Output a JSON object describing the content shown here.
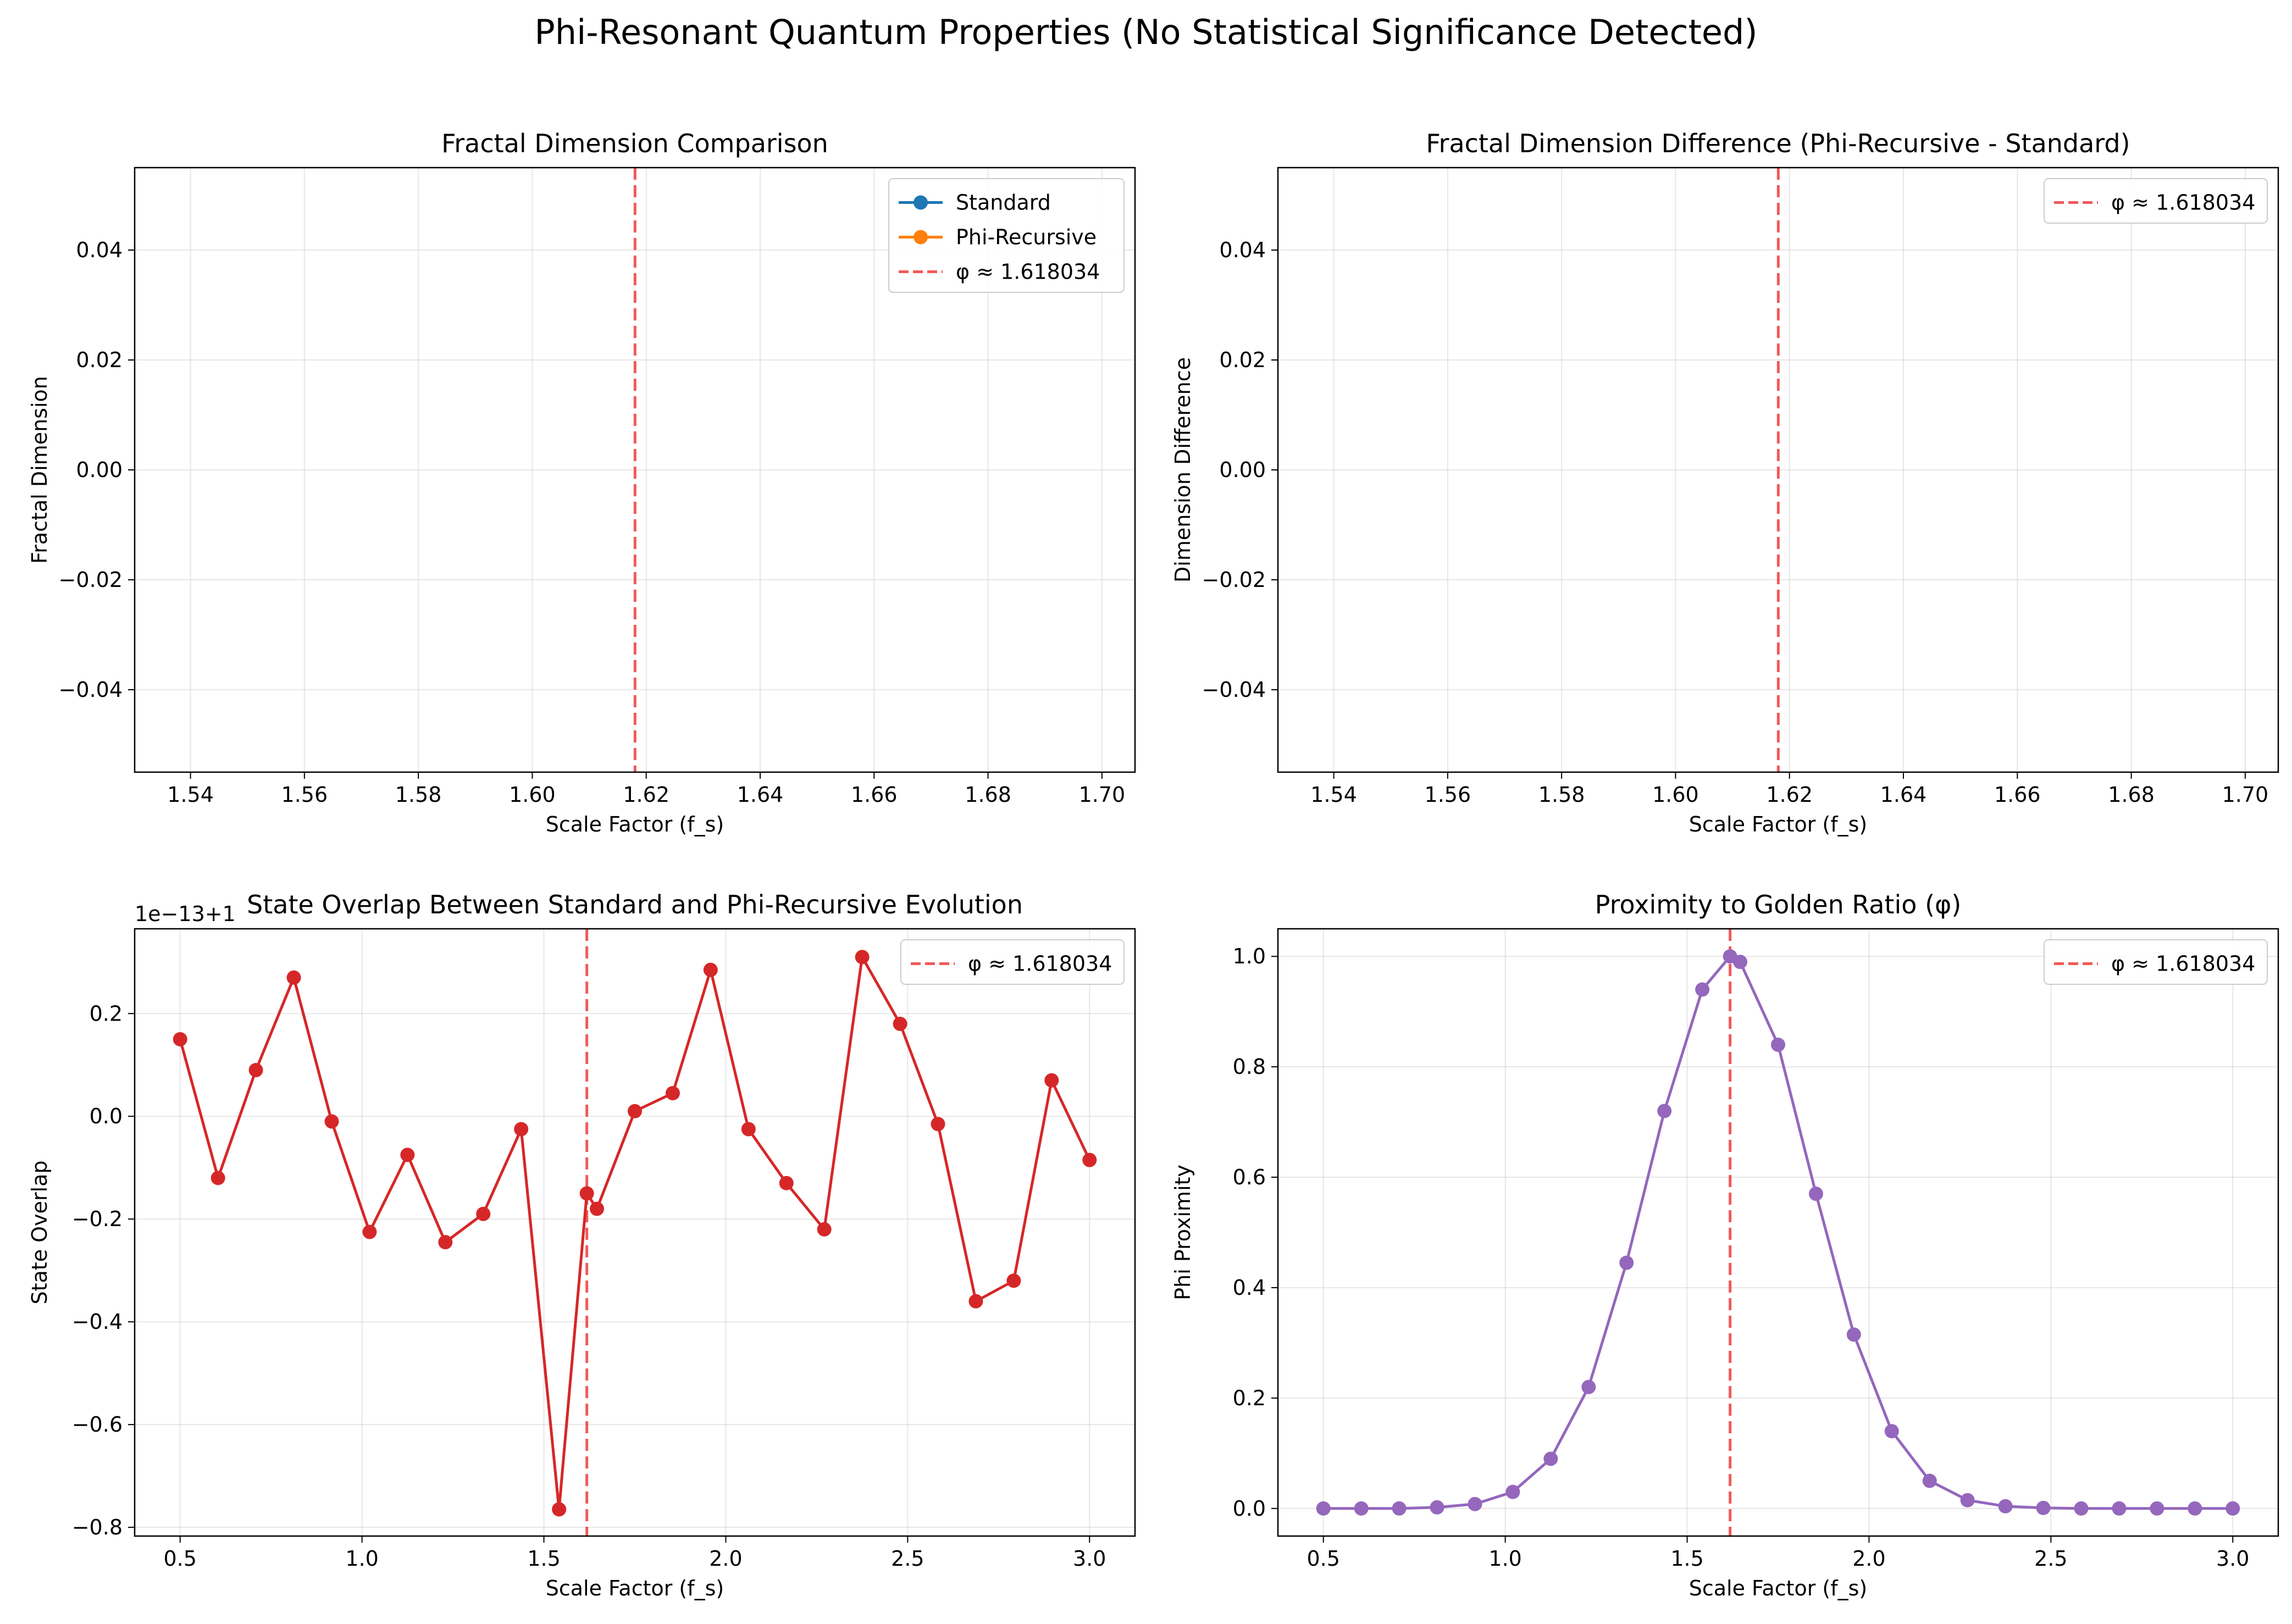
{
  "figure": {
    "suptitle": "Phi-Resonant Quantum Properties (No Statistical Significance Detected)"
  },
  "chart_data": [
    {
      "type": "line",
      "title": "Fractal Dimension Comparison",
      "xlabel": "Scale Factor (f_s)",
      "ylabel": "Fractal Dimension",
      "xlim": [
        1.5302,
        1.7058
      ],
      "ylim": [
        -0.055,
        0.055
      ],
      "xticks": [
        1.54,
        1.56,
        1.58,
        1.6,
        1.62,
        1.64,
        1.66,
        1.68,
        1.7
      ],
      "xtick_labels": [
        "1.54",
        "1.56",
        "1.58",
        "1.60",
        "1.62",
        "1.64",
        "1.66",
        "1.68",
        "1.70"
      ],
      "yticks": [
        -0.04,
        -0.02,
        0.0,
        0.02,
        0.04
      ],
      "ytick_labels": [
        "−0.04",
        "−0.02",
        "0.00",
        "0.02",
        "0.04"
      ],
      "grid": true,
      "legend_position": "top-right",
      "series": [
        {
          "name": "Standard",
          "color": "#1f77b4",
          "marker": "circle",
          "x": [],
          "y": []
        },
        {
          "name": "Phi-Recursive",
          "color": "#ff7f0e",
          "marker": "circle",
          "x": [],
          "y": []
        }
      ],
      "vlines": [
        {
          "x": 1.618034,
          "label": "φ ≈ 1.618034",
          "color": "#f03c3c",
          "style": "dashed"
        }
      ]
    },
    {
      "type": "line",
      "title": "Fractal Dimension Difference (Phi-Recursive - Standard)",
      "xlabel": "Scale Factor (f_s)",
      "ylabel": "Dimension Difference",
      "xlim": [
        1.5302,
        1.7058
      ],
      "ylim": [
        -0.055,
        0.055
      ],
      "xticks": [
        1.54,
        1.56,
        1.58,
        1.6,
        1.62,
        1.64,
        1.66,
        1.68,
        1.7
      ],
      "xtick_labels": [
        "1.54",
        "1.56",
        "1.58",
        "1.60",
        "1.62",
        "1.64",
        "1.66",
        "1.68",
        "1.70"
      ],
      "yticks": [
        -0.04,
        -0.02,
        0.0,
        0.02,
        0.04
      ],
      "ytick_labels": [
        "−0.04",
        "−0.02",
        "0.00",
        "0.02",
        "0.04"
      ],
      "grid": true,
      "legend_position": "top-right",
      "series": [],
      "vlines": [
        {
          "x": 1.618034,
          "label": "φ ≈ 1.618034",
          "color": "#f03c3c",
          "style": "dashed"
        }
      ]
    },
    {
      "type": "line",
      "title": "State Overlap Between Standard and Phi-Recursive Evolution",
      "xlabel": "Scale Factor (f_s)",
      "ylabel": "State Overlap",
      "axis_offset_label": "1e−13+1",
      "xlim": [
        0.375,
        3.125
      ],
      "ylim": [
        -0.817,
        0.365
      ],
      "xticks": [
        0.5,
        1.0,
        1.5,
        2.0,
        2.5,
        3.0
      ],
      "xtick_labels": [
        "0.5",
        "1.0",
        "1.5",
        "2.0",
        "2.5",
        "3.0"
      ],
      "yticks": [
        -0.8,
        -0.6,
        -0.4,
        -0.2,
        0.0,
        0.2
      ],
      "ytick_labels": [
        "−0.8",
        "−0.6",
        "−0.4",
        "−0.2",
        "0.0",
        "0.2"
      ],
      "grid": true,
      "legend_position": "top-right",
      "series": [
        {
          "color": "#d62728",
          "marker": "circle",
          "x": [
            0.5,
            0.6042,
            0.7083,
            0.8125,
            0.9167,
            1.0208,
            1.125,
            1.2292,
            1.3333,
            1.4375,
            1.5417,
            1.618034,
            1.6458,
            1.75,
            1.8542,
            1.9583,
            2.0625,
            2.1667,
            2.2708,
            2.375,
            2.4792,
            2.5833,
            2.6875,
            2.7917,
            2.8958,
            3.0
          ],
          "y": [
            0.15,
            -0.12,
            0.09,
            0.27,
            -0.01,
            -0.225,
            -0.075,
            -0.245,
            -0.19,
            -0.025,
            -0.765,
            -0.15,
            -0.18,
            0.01,
            0.045,
            0.285,
            -0.025,
            -0.13,
            -0.22,
            0.31,
            0.18,
            -0.015,
            -0.36,
            -0.32,
            0.07,
            -0.085
          ]
        }
      ],
      "vlines": [
        {
          "x": 1.618034,
          "label": "φ ≈ 1.618034",
          "color": "#f03c3c",
          "style": "dashed"
        }
      ]
    },
    {
      "type": "line",
      "title": "Proximity to Golden Ratio (φ)",
      "xlabel": "Scale Factor (f_s)",
      "ylabel": "Phi Proximity",
      "xlim": [
        0.375,
        3.125
      ],
      "ylim": [
        -0.05,
        1.05
      ],
      "xticks": [
        0.5,
        1.0,
        1.5,
        2.0,
        2.5,
        3.0
      ],
      "xtick_labels": [
        "0.5",
        "1.0",
        "1.5",
        "2.0",
        "2.5",
        "3.0"
      ],
      "yticks": [
        0.0,
        0.2,
        0.4,
        0.6,
        0.8,
        1.0
      ],
      "ytick_labels": [
        "0.0",
        "0.2",
        "0.4",
        "0.6",
        "0.8",
        "1.0"
      ],
      "grid": true,
      "legend_position": "top-right",
      "series": [
        {
          "color": "#9467bd",
          "marker": "circle",
          "x": [
            0.5,
            0.6042,
            0.7083,
            0.8125,
            0.9167,
            1.0208,
            1.125,
            1.2292,
            1.3333,
            1.4375,
            1.5417,
            1.618034,
            1.6458,
            1.75,
            1.8542,
            1.9583,
            2.0625,
            2.1667,
            2.2708,
            2.375,
            2.4792,
            2.5833,
            2.6875,
            2.7917,
            2.8958,
            3.0
          ],
          "y": [
            0.0,
            0.0,
            0.0,
            0.002,
            0.008,
            0.03,
            0.09,
            0.22,
            0.445,
            0.72,
            0.94,
            1.0,
            0.99,
            0.84,
            0.57,
            0.315,
            0.14,
            0.05,
            0.015,
            0.004,
            0.001,
            0.0,
            0.0,
            0.0,
            0.0,
            0.0
          ]
        }
      ],
      "vlines": [
        {
          "x": 1.618034,
          "label": "φ ≈ 1.618034",
          "color": "#f03c3c",
          "style": "dashed"
        }
      ]
    }
  ]
}
